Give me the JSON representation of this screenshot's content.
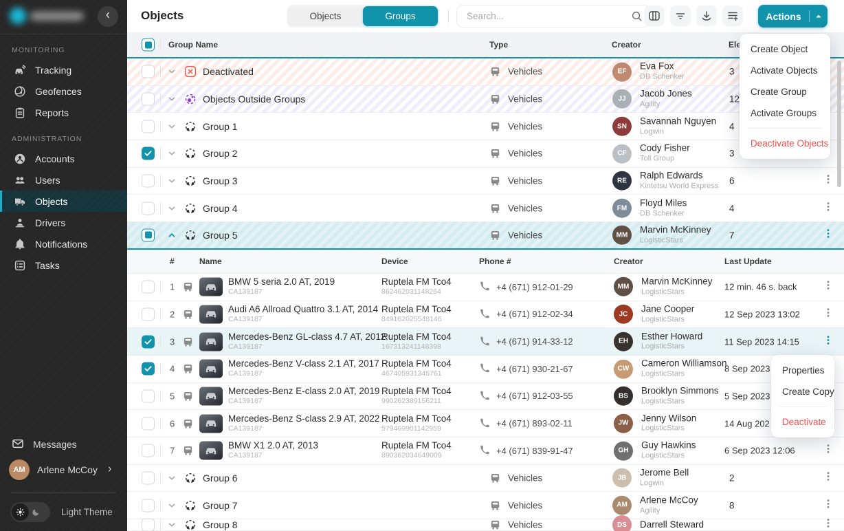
{
  "accent": "#1193ab",
  "danger": "#f0524d",
  "sidebar": {
    "sections": [
      {
        "label": "MONITORING",
        "items": [
          {
            "label": "Tracking",
            "icon": "tracking"
          },
          {
            "label": "Geofences",
            "icon": "geofences"
          },
          {
            "label": "Reports",
            "icon": "reports"
          }
        ]
      },
      {
        "label": "ADMINISTRATION",
        "items": [
          {
            "label": "Accounts",
            "icon": "accounts"
          },
          {
            "label": "Users",
            "icon": "users"
          },
          {
            "label": "Objects",
            "icon": "objects",
            "active": true
          },
          {
            "label": "Drivers",
            "icon": "drivers"
          },
          {
            "label": "Notifications",
            "icon": "bell"
          },
          {
            "label": "Tasks",
            "icon": "tasks"
          }
        ]
      }
    ],
    "messages_label": "Messages",
    "user": {
      "name": "Arlene McCoy",
      "initials": "AM",
      "color": "#b98a63"
    },
    "theme_label": "Light Theme"
  },
  "topbar": {
    "title": "Objects",
    "toggle": [
      {
        "label": "Objects",
        "active": false
      },
      {
        "label": "Groups",
        "active": true
      }
    ],
    "search_placeholder": "Search...",
    "tools": [
      "columns",
      "filter",
      "download",
      "add-list"
    ],
    "actions_label": "Actions"
  },
  "actions_menu": [
    {
      "label": "Create Object"
    },
    {
      "label": "Activate Objects"
    },
    {
      "label": "Create Group"
    },
    {
      "label": "Activate Groups"
    },
    {
      "label": "Deactivate Objects",
      "danger": true
    }
  ],
  "context_menu": [
    {
      "label": "Properties"
    },
    {
      "label": "Create Copy"
    },
    {
      "label": "Deactivate",
      "danger": true
    }
  ],
  "table": {
    "headers": {
      "group_name": "Group Name",
      "type": "Type",
      "creator": "Creator",
      "elements": "Elements"
    },
    "groups": [
      {
        "name": "Deactivated",
        "icon": "deactivated",
        "style": "r-deact",
        "type": "Vehicles",
        "creator": {
          "name": "Eva Fox",
          "company": "DB Schenker",
          "initials": "EF",
          "color": "#bf8a70"
        },
        "elements": "3"
      },
      {
        "name": "Objects Outside Groups",
        "icon": "outside",
        "style": "r-outside",
        "type": "Vehicles",
        "creator": {
          "name": "Jacob Jones",
          "company": "Agility",
          "initials": "JJ",
          "color": "#a9b0b6"
        },
        "elements": "12"
      },
      {
        "name": "Group 1",
        "icon": "group",
        "type": "Vehicles",
        "creator": {
          "name": "Savannah Nguyen",
          "company": "Logwin",
          "initials": "SN",
          "color": "#8e3b3b"
        },
        "elements": "4"
      },
      {
        "name": "Group 2",
        "icon": "group",
        "type": "Vehicles",
        "checked": true,
        "creator": {
          "name": "Cody Fisher",
          "company": "Toll Group",
          "initials": "CF",
          "color": "#b9c0c6"
        },
        "elements": "3"
      },
      {
        "name": "Group 3",
        "icon": "group",
        "type": "Vehicles",
        "creator": {
          "name": "Ralph Edwards",
          "company": "Kintetsu World Express",
          "initials": "RE",
          "color": "#2e3440"
        },
        "elements": "6"
      },
      {
        "name": "Group 4",
        "icon": "group",
        "type": "Vehicles",
        "creator": {
          "name": "Floyd Miles",
          "company": "DB Schenker",
          "initials": "FM",
          "color": "#7d8c99"
        },
        "elements": "4"
      },
      {
        "name": "Group 5",
        "icon": "group",
        "style": "r-sel",
        "expanded": true,
        "indeterminate": true,
        "type": "Vehicles",
        "creator": {
          "name": "Marvin McKinney",
          "company": "LogisticStars",
          "initials": "MM",
          "color": "#5f4f44"
        },
        "elements": "7"
      },
      {
        "name": "Group 6",
        "icon": "group",
        "type": "Vehicles",
        "creator": {
          "name": "Jerome Bell",
          "company": "Logwin",
          "initials": "JB",
          "color": "#cdbfae"
        },
        "elements": "2"
      },
      {
        "name": "Group 7",
        "icon": "group",
        "type": "Vehicles",
        "creator": {
          "name": "Arlene McCoy",
          "company": "Agility",
          "initials": "AM",
          "color": "#a98a6e"
        },
        "elements": "8"
      },
      {
        "name": "Group 8",
        "icon": "group",
        "type": "Vehicles",
        "partial": true,
        "creator": {
          "name": "Darrell Steward",
          "company": "",
          "initials": "DS",
          "color": "#d98f94"
        },
        "elements": ""
      }
    ],
    "subtable": {
      "headers": {
        "num": "#",
        "name": "Name",
        "device": "Device",
        "phone": "Phone #",
        "creator": "Creator",
        "last_update": "Last Update"
      },
      "rows": [
        {
          "num": "1",
          "name": "BMW 5 seria 2.0 AT, 2019",
          "plate": "CA139187",
          "device": "Ruptela FM Tco4",
          "imei": "862462031148264",
          "phone": "+4 (671) 912-01-29",
          "creator": {
            "name": "Marvin McKinney",
            "company": "LogisticStars",
            "initials": "MM",
            "color": "#5f4f44"
          },
          "last_update": "12 min. 46 s. back"
        },
        {
          "num": "2",
          "name": "Audi A6 Allroad Quattro 3.1 AT, 2014",
          "plate": "CA139187",
          "device": "Ruptela FM Tco4",
          "imei": "849162025548146",
          "phone": "+4 (671) 912-02-34",
          "creator": {
            "name": "Jane Cooper",
            "company": "LogisticStars",
            "initials": "JC",
            "color": "#9e3a22"
          },
          "last_update": "12 Sep 2023 13:02"
        },
        {
          "num": "3",
          "checked": true,
          "selected": true,
          "menu_open": true,
          "name": "Mercedes-Benz GL-class 4.7 AT, 2012",
          "plate": "CA139187",
          "device": "Ruptela FM Tco4",
          "imei": "167313241148398",
          "phone": "+4 (671) 914-33-12",
          "creator": {
            "name": "Esther Howard",
            "company": "LogisticStars",
            "initials": "EH",
            "color": "#37322e"
          },
          "last_update": "11 Sep 2023 14:15"
        },
        {
          "num": "4",
          "checked": true,
          "name": "Mercedes-Benz V-class 2.1 AT, 2017",
          "plate": "CA139187",
          "device": "Ruptela FM Tco4",
          "imei": "467405931345761",
          "phone": "+4 (671) 930-21-67",
          "creator": {
            "name": "Cameron Williamson",
            "company": "LogisticStars",
            "initials": "CW",
            "color": "#c79b72"
          },
          "last_update": "8 Sep 2023"
        },
        {
          "num": "5",
          "name": "Mercedes-Benz E-class 2.0 AT, 2019",
          "plate": "CA139187",
          "device": "Ruptela FM Tco4",
          "imei": "990262389156211",
          "phone": "+4 (671) 912-03-55",
          "creator": {
            "name": "Brooklyn Simmons",
            "company": "LogisticStars",
            "initials": "BS",
            "color": "#332f2f"
          },
          "last_update": "5 Sep 2023"
        },
        {
          "num": "6",
          "name": "Mercedes-Benz S-class 2.9 AT, 2022",
          "plate": "CA139187",
          "device": "Ruptela FM Tco4",
          "imei": "579469901142959",
          "phone": "+4 (671) 893-02-11",
          "creator": {
            "name": "Jenny Wilson",
            "company": "LogisticStars",
            "initials": "JW",
            "color": "#8a5f47"
          },
          "last_update": "14 Aug 202"
        },
        {
          "num": "7",
          "name": "BMW X1 2.0 AT, 2013",
          "plate": "CA139187",
          "device": "Ruptela FM Tco4",
          "imei": "890362034649009",
          "phone": "+4 (671) 839-91-47",
          "creator": {
            "name": "Guy Hawkins",
            "company": "LogisticStars",
            "initials": "GH",
            "color": "#6f6f6f"
          },
          "last_update": "6 Sep 2023 12:06"
        }
      ]
    }
  }
}
